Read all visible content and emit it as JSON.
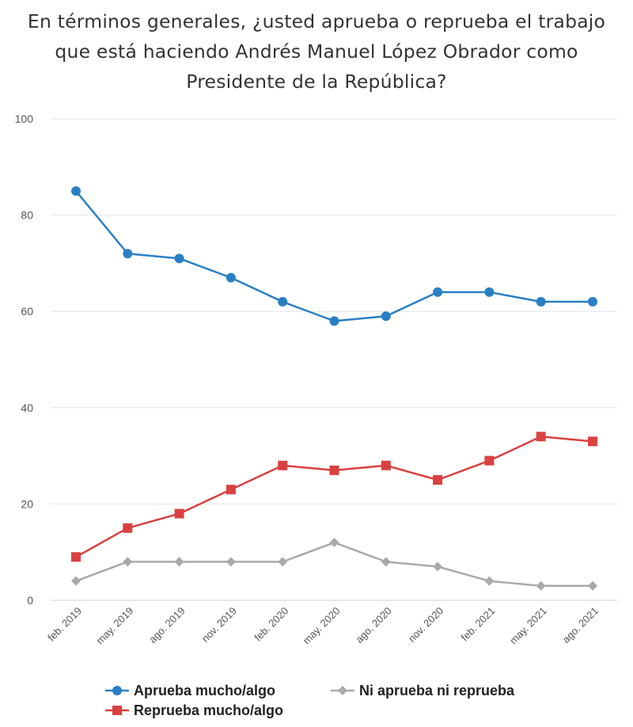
{
  "title_lines": [
    "En términos generales, ¿usted aprueba o reprueba el trabajo",
    "que está haciendo Andrés Manuel López Obrador como",
    "Presidente de la República?"
  ],
  "chart_data": {
    "type": "line",
    "title": "En términos generales, ¿usted aprueba o reprueba el trabajo que está haciendo Andrés Manuel López Obrador como Presidente de la República?",
    "categories": [
      "feb. 2019",
      "may. 2019",
      "ago. 2019",
      "nov. 2019",
      "feb. 2020",
      "may. 2020",
      "ago. 2020",
      "nov. 2020",
      "feb. 2021",
      "may. 2021",
      "ago. 2021"
    ],
    "ylim": [
      0,
      100
    ],
    "yticks": [
      0,
      20,
      40,
      60,
      80,
      100
    ],
    "grid": true,
    "legend_position": "bottom",
    "series": [
      {
        "name": "Aprueba mucho/algo",
        "color": "#2a7fc4",
        "marker": "circle",
        "values": [
          85,
          72,
          71,
          67,
          62,
          58,
          59,
          64,
          64,
          62,
          62
        ]
      },
      {
        "name": "Reprueba mucho/algo",
        "color": "#d94141",
        "marker": "square",
        "values": [
          9,
          15,
          18,
          23,
          28,
          27,
          28,
          25,
          29,
          34,
          33
        ]
      },
      {
        "name": "Ni aprueba ni reprueba",
        "color": "#a9a9a9",
        "marker": "diamond",
        "values": [
          4,
          8,
          8,
          8,
          8,
          12,
          8,
          7,
          4,
          3,
          3
        ]
      }
    ]
  }
}
